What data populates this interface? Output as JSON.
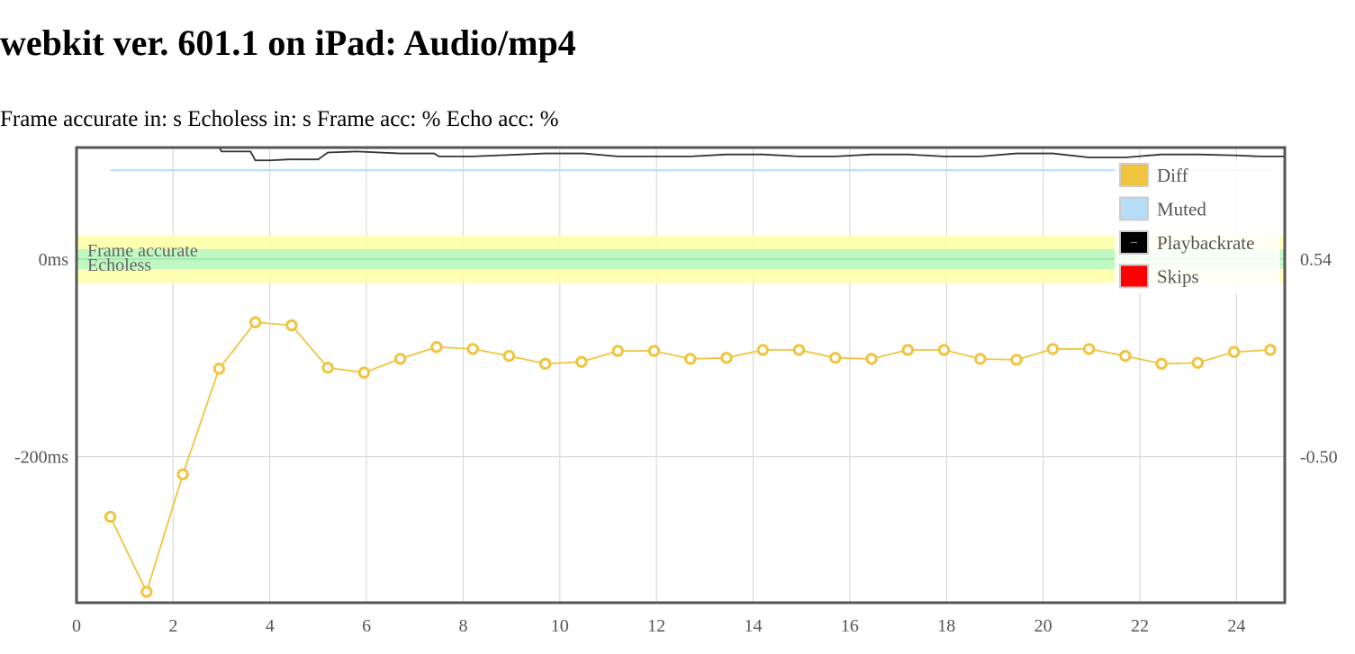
{
  "page": {
    "title": "webkit ver. 601.1 on iPad: Audio/mp4",
    "stats": {
      "frame_accurate_label": "Frame accurate in:",
      "frame_accurate_value": "",
      "frame_accurate_unit": "s",
      "echoless_label": "Echoless in:",
      "echoless_value": "",
      "echoless_unit": "s",
      "frame_acc_label": "Frame acc:",
      "frame_acc_value": "",
      "frame_acc_unit": "%",
      "echo_acc_label": "Echo acc:",
      "echo_acc_value": "",
      "echo_acc_unit": "%"
    }
  },
  "colors": {
    "diff": "#f0c43f",
    "muted": "#b7dcf8",
    "playbackrate": "#000000",
    "skips": "#ff0000",
    "frame_accurate_band": "#ffffa8",
    "echoless_band": "#b8f7c2",
    "grid": "#d9d9d9",
    "axis_frame": "#555555"
  },
  "chart_data": {
    "type": "line",
    "x_ticks": [
      0,
      2,
      4,
      6,
      8,
      10,
      12,
      14,
      16,
      18,
      20,
      22,
      24
    ],
    "xlim": [
      0,
      25
    ],
    "y_left": {
      "ticks": [
        "0ms",
        "-200ms"
      ],
      "tick_values": [
        0,
        -200
      ],
      "ylim": [
        -348,
        113
      ]
    },
    "y_right": {
      "ticks": [
        "0.54",
        "-0.50"
      ],
      "tick_values": [
        0.54,
        -0.5
      ]
    },
    "bands": [
      {
        "label": "Frame accurate",
        "from": -24,
        "to": 24
      },
      {
        "label": "Echoless",
        "from": -10,
        "to": 10
      }
    ],
    "legend": {
      "position": "top-right",
      "items": [
        {
          "label": "Diff",
          "color_key": "diff"
        },
        {
          "label": "Muted",
          "color_key": "muted"
        },
        {
          "label": "Playbackrate",
          "color_key": "playbackrate"
        },
        {
          "label": "Skips",
          "color_key": "skips"
        }
      ]
    },
    "grid": true,
    "series": [
      {
        "name": "Diff",
        "x": [
          0.7,
          1.45,
          2.2,
          2.95,
          3.7,
          4.45,
          5.2,
          5.95,
          6.7,
          7.45,
          8.2,
          8.95,
          9.7,
          10.45,
          11.2,
          11.95,
          12.7,
          13.45,
          14.2,
          14.95,
          15.7,
          16.45,
          17.2,
          17.95,
          18.7,
          19.45,
          20.2,
          20.95,
          21.7,
          22.45,
          23.2,
          23.95,
          24.7
        ],
        "y": [
          -261,
          -337,
          -218,
          -111,
          -64,
          -67,
          -110,
          -115,
          -101,
          -89,
          -91,
          -98,
          -106,
          -104,
          -93,
          -93,
          -101,
          -100,
          -92,
          -92,
          -100,
          -101,
          -92,
          -92,
          -101,
          -102,
          -91,
          -91,
          -98,
          -106,
          -105,
          -94,
          -92
        ]
      },
      {
        "name": "Muted",
        "x": [
          0.7,
          24.7
        ],
        "y": [
          90,
          90
        ]
      },
      {
        "name": "Playbackrate",
        "x": [
          2.95,
          3.0,
          3.6,
          3.7,
          4.0,
          4.4,
          5.0,
          5.2,
          5.8,
          6.7,
          7.4,
          7.5,
          8.2,
          9.7,
          10.5,
          11.2,
          12.7,
          13.45,
          14.2,
          14.95,
          15.7,
          16.45,
          17.2,
          17.95,
          18.7,
          19.45,
          20.2,
          20.95,
          21.7,
          22.45,
          23.2,
          24.0,
          24.5,
          25.0
        ],
        "y": [
          113,
          109,
          109,
          100,
          100,
          101,
          101,
          108,
          109,
          107,
          107,
          104,
          104,
          107,
          107,
          104,
          104,
          106,
          106,
          104,
          104,
          106,
          106,
          104,
          104,
          107,
          107,
          103,
          103,
          106,
          106,
          105,
          104,
          104
        ]
      },
      {
        "name": "Skips",
        "x": [],
        "y": []
      }
    ]
  }
}
